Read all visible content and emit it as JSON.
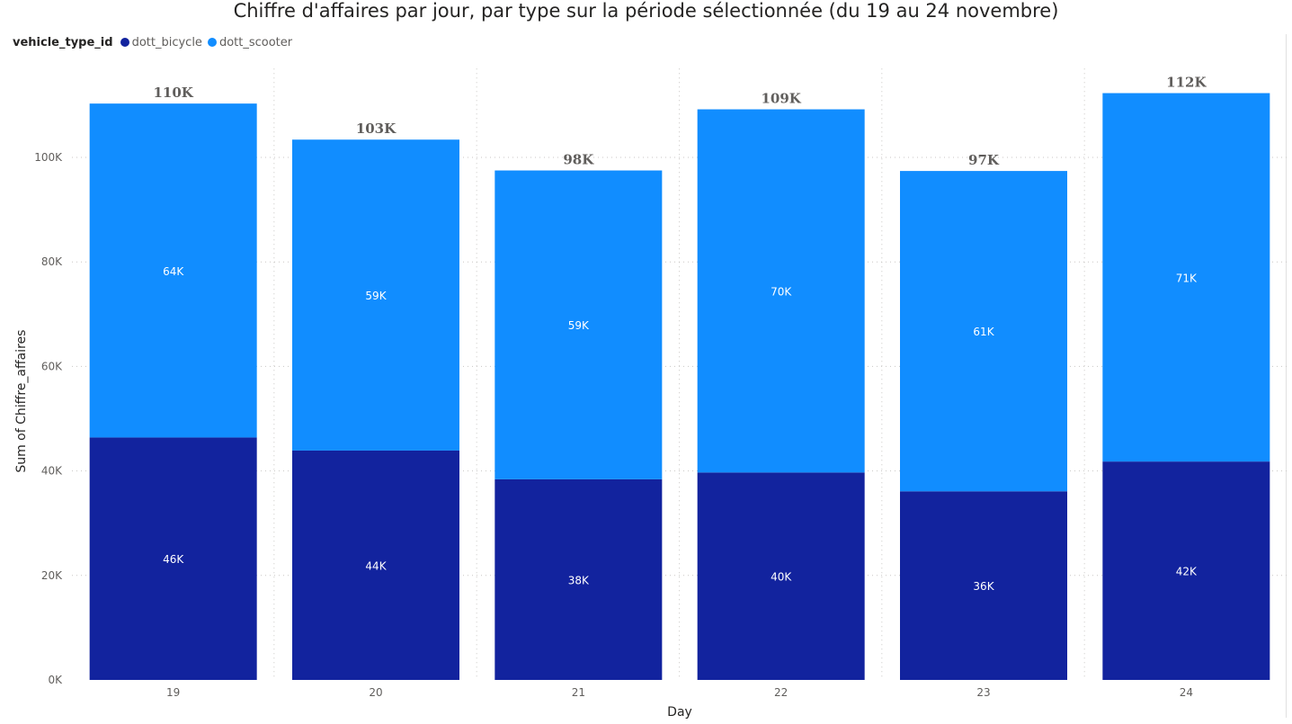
{
  "chart_data": {
    "type": "bar",
    "stacked": true,
    "title": "Chiffre d'affaires par jour, par type sur la période sélectionnée (du 19 au 24 novembre)",
    "xlabel": "Day",
    "ylabel": "Sum of Chiffre_affaires",
    "legend_title": "vehicle_type_id",
    "legend_position": "top-left",
    "categories": [
      "19",
      "20",
      "21",
      "22",
      "23",
      "24"
    ],
    "ylim": [
      0,
      117000
    ],
    "yticks": [
      0,
      20000,
      40000,
      60000,
      80000,
      100000
    ],
    "ytick_labels": [
      "0K",
      "20K",
      "40K",
      "60K",
      "80K",
      "100K"
    ],
    "grid": true,
    "series": [
      {
        "name": "dott_bicycle",
        "color": "#12239E",
        "values": [
          46400,
          43900,
          38400,
          39700,
          36100,
          41800
        ],
        "labels": [
          "46K",
          "44K",
          "38K",
          "40K",
          "36K",
          "42K"
        ]
      },
      {
        "name": "dott_scooter",
        "color": "#118DFF",
        "values": [
          63900,
          59500,
          59100,
          69500,
          61300,
          70500
        ],
        "labels": [
          "64K",
          "59K",
          "59K",
          "70K",
          "61K",
          "71K"
        ]
      }
    ],
    "totals": [
      110300,
      103400,
      97500,
      109200,
      97400,
      112300
    ],
    "total_labels": [
      "110K",
      "103K",
      "98K",
      "109K",
      "97K",
      "112K"
    ]
  }
}
